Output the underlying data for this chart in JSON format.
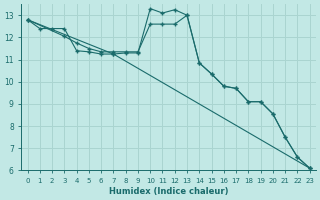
{
  "xlabel": "Humidex (Indice chaleur)",
  "bg_color": "#c2e8e5",
  "grid_color": "#aad4d0",
  "line_color": "#1a6b6b",
  "xlim": [
    -0.5,
    23.5
  ],
  "ylim": [
    6,
    13.5
  ],
  "ylim_display": [
    6,
    13
  ],
  "xticks": [
    0,
    1,
    2,
    3,
    4,
    5,
    6,
    7,
    8,
    9,
    10,
    11,
    12,
    13,
    14,
    15,
    16,
    17,
    18,
    19,
    20,
    21,
    22,
    23
  ],
  "yticks": [
    6,
    7,
    8,
    9,
    10,
    11,
    12,
    13
  ],
  "line1_x": [
    0,
    1,
    2,
    3,
    4,
    5,
    6,
    7,
    8,
    9,
    10,
    11,
    12,
    13,
    14,
    15,
    16,
    17,
    18,
    19,
    20,
    21,
    22,
    23
  ],
  "line1_y": [
    12.8,
    12.4,
    12.4,
    12.4,
    11.4,
    11.35,
    11.25,
    11.25,
    11.3,
    11.3,
    13.3,
    13.1,
    13.25,
    13.0,
    10.85,
    10.35,
    9.8,
    9.7,
    9.1,
    9.1,
    8.55,
    7.5,
    6.6,
    6.1
  ],
  "line2_x": [
    0,
    3,
    4,
    5,
    6,
    7,
    8,
    9,
    10,
    11,
    12,
    13,
    14,
    15,
    16,
    17,
    18,
    19,
    20,
    21,
    22,
    23
  ],
  "line2_y": [
    12.8,
    12.05,
    11.75,
    11.5,
    11.35,
    11.35,
    11.35,
    11.35,
    12.6,
    12.6,
    12.6,
    13.0,
    10.85,
    10.35,
    9.8,
    9.7,
    9.1,
    9.1,
    8.55,
    7.5,
    6.6,
    6.1
  ],
  "line3_x": [
    0,
    7,
    23
  ],
  "line3_y": [
    12.8,
    11.25,
    6.1
  ]
}
